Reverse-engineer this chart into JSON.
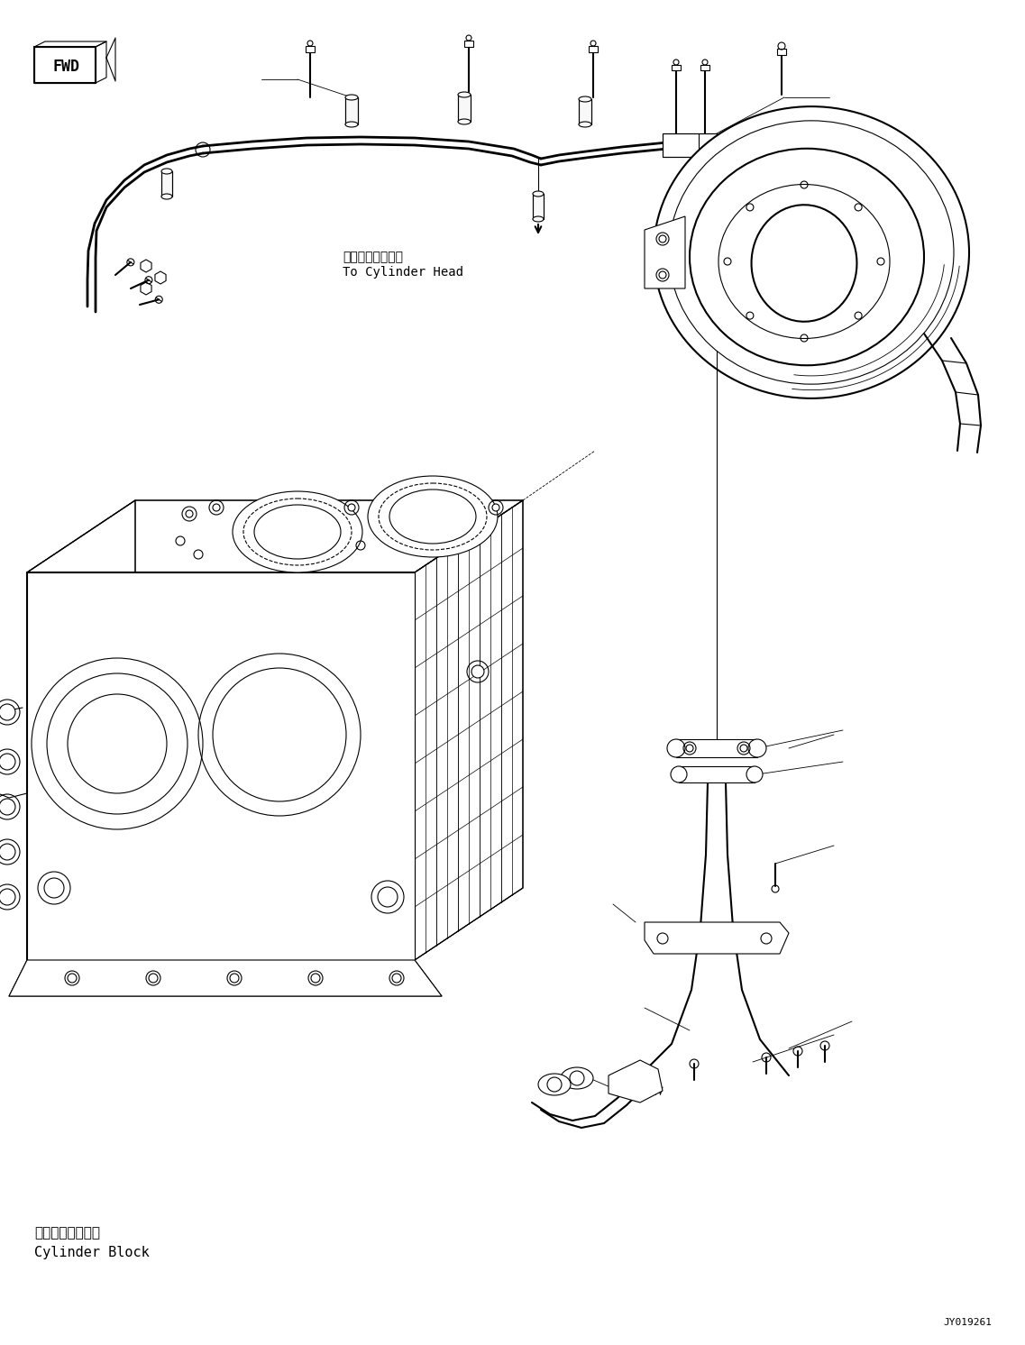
{
  "bg_color": "#ffffff",
  "line_color": "#000000",
  "figure_id": "JY019261",
  "label_cylinder_head_jp": "シリンダヘッドへ",
  "label_cylinder_head_en": "To Cylinder Head",
  "label_cylinder_block_jp": "シリンダブロック",
  "label_cylinder_block_en": "Cylinder Block",
  "label_fwd": "FWD",
  "font_size_label": 10,
  "font_size_small": 8,
  "font_size_id": 8,
  "lw": 0.8,
  "lw_thick": 1.5,
  "lw_pipe": 2.0
}
